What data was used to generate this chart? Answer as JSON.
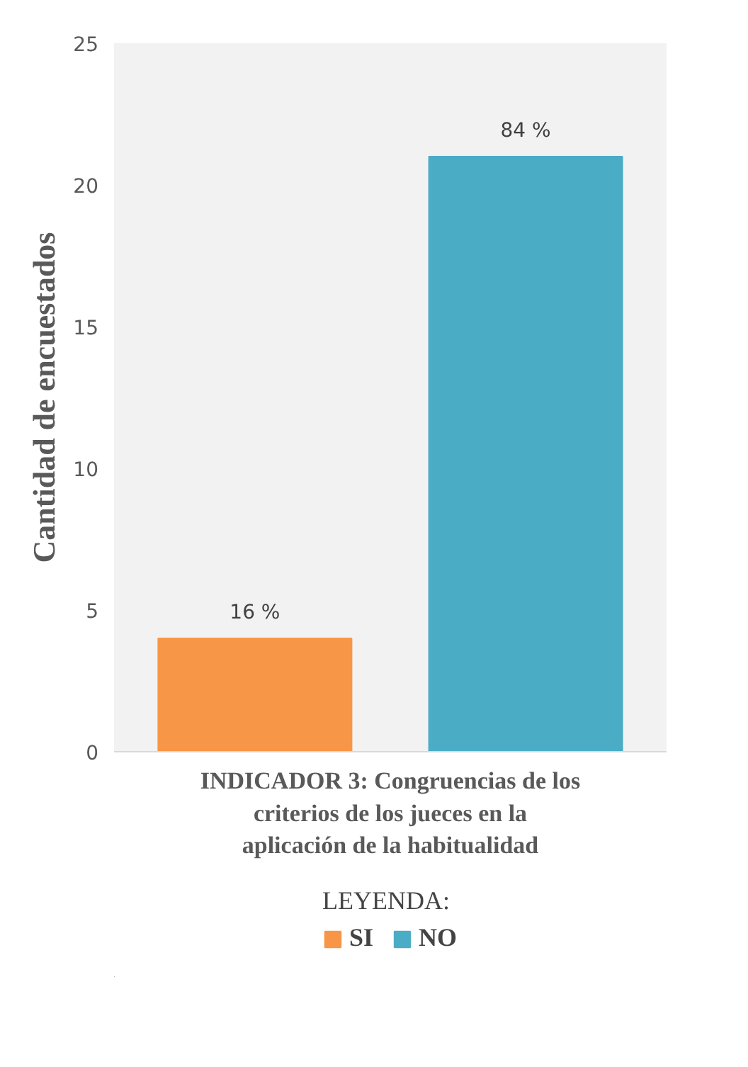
{
  "chart_data": {
    "type": "bar",
    "categories": [
      "INDICADOR 3: Congruencias de los criterios de los jueces en la aplicación de la habitualidad"
    ],
    "series": [
      {
        "name": "SI",
        "color": "#f79646",
        "values": [
          4
        ]
      },
      {
        "name": "NO",
        "color": "#4bacc6",
        "values": [
          21
        ]
      }
    ],
    "annotations": [
      {
        "text": "16 %",
        "y": 4
      },
      {
        "text": "84 %",
        "y": 21
      }
    ],
    "ylabel": "Cantidad de encuestados",
    "legend_title": "LEYENDA:",
    "legend": "bottom",
    "ylim": [
      0,
      25
    ],
    "yticks": [
      0,
      5,
      10,
      15,
      20,
      25
    ],
    "grid": false
  }
}
